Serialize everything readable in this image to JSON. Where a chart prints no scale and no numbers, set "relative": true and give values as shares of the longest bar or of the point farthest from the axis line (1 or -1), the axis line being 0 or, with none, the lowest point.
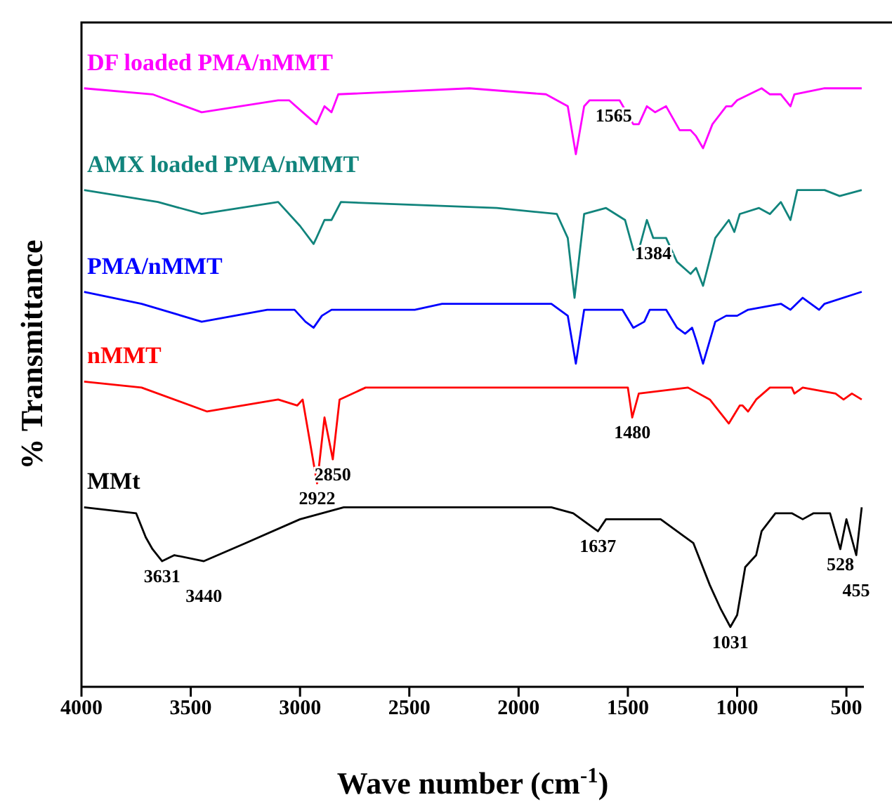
{
  "chart_data": {
    "type": "line",
    "relative": true,
    "xlabel": "Wave number (cm$^{-1}$)",
    "ylabel": "% Transmittance",
    "xlim": [
      4000,
      420
    ],
    "xticks": [
      4000,
      3500,
      3000,
      2500,
      2000,
      1500,
      1000,
      500
    ],
    "series": [
      {
        "name": "DF loaded PMA/nMMT",
        "color": "#ff00ff",
        "x": [
          3988,
          3675,
          3450,
          3100,
          3050,
          2988,
          2925,
          2888,
          2856,
          2825,
          2225,
          1875,
          1775,
          1738,
          1700,
          1675,
          1538,
          1475,
          1450,
          1413,
          1375,
          1325,
          1263,
          1213,
          1188,
          1156,
          1113,
          1050,
          1025,
          1000,
          888,
          850,
          800,
          756,
          738,
          600,
          430
        ],
        "values": [
          1.0,
          0.99,
          0.96,
          0.98,
          0.98,
          0.96,
          0.94,
          0.97,
          0.96,
          0.99,
          1.0,
          0.99,
          0.97,
          0.89,
          0.97,
          0.98,
          0.98,
          0.94,
          0.94,
          0.97,
          0.96,
          0.97,
          0.93,
          0.93,
          0.92,
          0.9,
          0.94,
          0.97,
          0.97,
          0.98,
          1.0,
          0.99,
          0.99,
          0.97,
          0.99,
          1.0,
          1.0
        ]
      },
      {
        "name": "AMX loaded PMA/nMMT",
        "color": "#11847c",
        "x": [
          3988,
          3650,
          3450,
          3100,
          3000,
          2938,
          2925,
          2888,
          2856,
          2813,
          2100,
          1825,
          1775,
          1744,
          1700,
          1600,
          1513,
          1475,
          1450,
          1413,
          1384,
          1325,
          1275,
          1213,
          1188,
          1156,
          1100,
          1038,
          1013,
          988,
          900,
          850,
          800,
          756,
          725,
          600,
          531,
          430
        ],
        "values": [
          0.83,
          0.81,
          0.79,
          0.81,
          0.77,
          0.74,
          0.75,
          0.78,
          0.78,
          0.81,
          0.8,
          0.79,
          0.75,
          0.65,
          0.79,
          0.8,
          0.78,
          0.73,
          0.73,
          0.78,
          0.75,
          0.75,
          0.71,
          0.69,
          0.7,
          0.67,
          0.75,
          0.78,
          0.76,
          0.79,
          0.8,
          0.79,
          0.81,
          0.78,
          0.83,
          0.83,
          0.82,
          0.83
        ]
      },
      {
        "name": "PMA/nMMT",
        "color": "#0000ff",
        "x": [
          3988,
          3725,
          3450,
          3150,
          3025,
          2975,
          2938,
          2900,
          2856,
          2800,
          2475,
          2350,
          1850,
          1775,
          1738,
          1700,
          1525,
          1475,
          1425,
          1400,
          1325,
          1275,
          1238,
          1206,
          1188,
          1156,
          1100,
          1050,
          1000,
          950,
          800,
          756,
          700,
          625,
          600,
          430
        ],
        "values": [
          0.66,
          0.64,
          0.61,
          0.63,
          0.63,
          0.61,
          0.6,
          0.62,
          0.63,
          0.63,
          0.63,
          0.64,
          0.64,
          0.62,
          0.54,
          0.63,
          0.63,
          0.6,
          0.61,
          0.63,
          0.63,
          0.6,
          0.59,
          0.6,
          0.58,
          0.54,
          0.61,
          0.62,
          0.62,
          0.63,
          0.64,
          0.63,
          0.65,
          0.63,
          0.64,
          0.66
        ]
      },
      {
        "name": "nMMT",
        "color": "#ff0000",
        "x": [
          3988,
          3725,
          3425,
          3100,
          3013,
          2988,
          2922,
          2888,
          2850,
          2819,
          2700,
          2100,
          1725,
          1625,
          1500,
          1480,
          1450,
          1225,
          1125,
          1038,
          988,
          975,
          950,
          913,
          850,
          750,
          738,
          700,
          550,
          513,
          475,
          430
        ],
        "values": [
          0.51,
          0.5,
          0.46,
          0.48,
          0.47,
          0.48,
          0.34,
          0.45,
          0.38,
          0.48,
          0.5,
          0.5,
          0.5,
          0.5,
          0.5,
          0.45,
          0.49,
          0.5,
          0.48,
          0.44,
          0.47,
          0.47,
          0.46,
          0.48,
          0.5,
          0.5,
          0.49,
          0.5,
          0.49,
          0.48,
          0.49,
          0.48
        ]
      },
      {
        "name": "MMt",
        "color": "#000000",
        "x": [
          3988,
          3750,
          3706,
          3675,
          3631,
          3575,
          3440,
          3250,
          3000,
          2800,
          1850,
          1750,
          1637,
          1600,
          1450,
          1350,
          1200,
          1125,
          1075,
          1031,
          1000,
          963,
          913,
          888,
          825,
          750,
          700,
          650,
          575,
          528,
          500,
          455,
          430
        ],
        "values": [
          0.3,
          0.29,
          0.25,
          0.23,
          0.21,
          0.22,
          0.21,
          0.24,
          0.28,
          0.3,
          0.3,
          0.29,
          0.26,
          0.28,
          0.28,
          0.28,
          0.24,
          0.17,
          0.13,
          0.1,
          0.12,
          0.2,
          0.22,
          0.26,
          0.29,
          0.29,
          0.28,
          0.29,
          0.29,
          0.23,
          0.28,
          0.22,
          0.3
        ]
      }
    ],
    "annotations": [
      {
        "text": "1565",
        "x": 1565,
        "y": 0.98
      },
      {
        "text": "1384",
        "x": 1384,
        "y": 0.75
      },
      {
        "text": "2922",
        "x": 2922,
        "y": 0.34
      },
      {
        "text": "2850",
        "x": 2850,
        "y": 0.38
      },
      {
        "text": "1480",
        "x": 1480,
        "y": 0.45
      },
      {
        "text": "3631",
        "x": 3631,
        "y": 0.21
      },
      {
        "text": "3440",
        "x": 3440,
        "y": 0.21
      },
      {
        "text": "1637",
        "x": 1637,
        "y": 0.26
      },
      {
        "text": "1031",
        "x": 1031,
        "y": 0.1
      },
      {
        "text": "528",
        "x": 528,
        "y": 0.23
      },
      {
        "text": "455",
        "x": 455,
        "y": 0.22
      }
    ]
  }
}
